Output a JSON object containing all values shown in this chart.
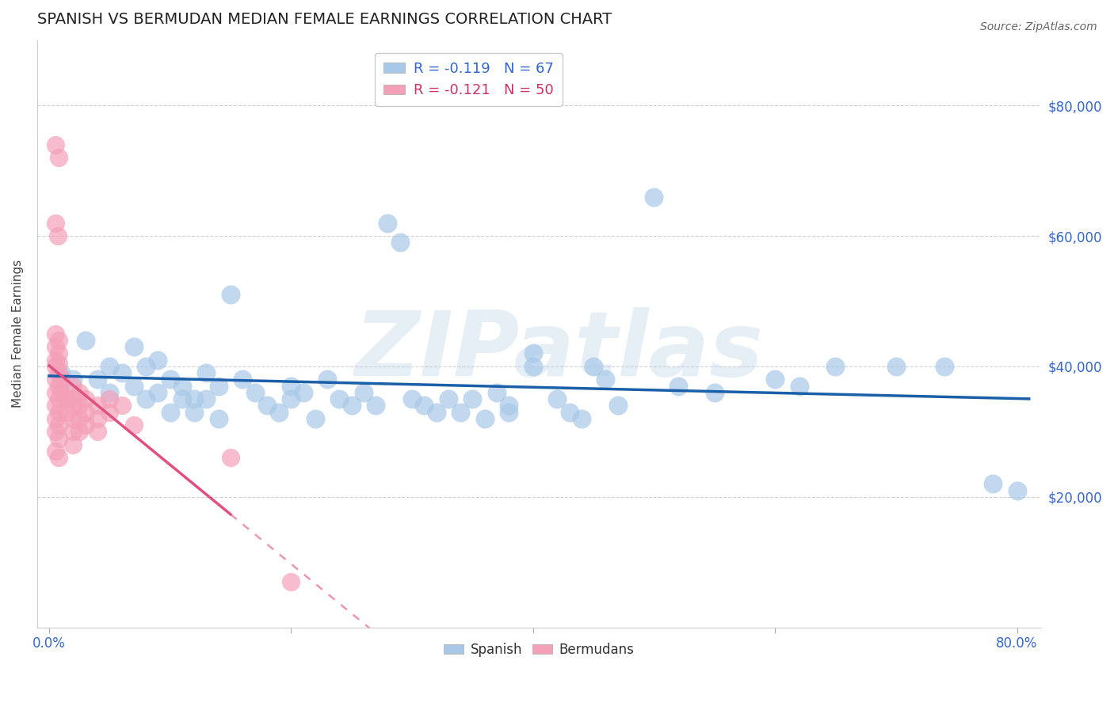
{
  "title": "SPANISH VS BERMUDAN MEDIAN FEMALE EARNINGS CORRELATION CHART",
  "source": "Source: ZipAtlas.com",
  "xlabel": "",
  "ylabel": "Median Female Earnings",
  "xlim": [
    -0.01,
    0.82
  ],
  "ylim": [
    0,
    90000
  ],
  "yticks": [
    20000,
    40000,
    60000,
    80000
  ],
  "ytick_labels": [
    "$20,000",
    "$40,000",
    "$60,000",
    "$80,000"
  ],
  "xticks": [
    0.0,
    0.2,
    0.4,
    0.6,
    0.8
  ],
  "xtick_labels": [
    "0.0%",
    "",
    "",
    "",
    "80.0%"
  ],
  "spanish_color": "#a8c8e8",
  "bermudan_color": "#f4a0b8",
  "trend_spanish_color": "#1a5fa8",
  "trend_bermudan_color": "#e05080",
  "watermark": "ZIPatlas",
  "spanish_points": [
    [
      0.01,
      39000
    ],
    [
      0.02,
      38000
    ],
    [
      0.03,
      44000
    ],
    [
      0.04,
      38000
    ],
    [
      0.05,
      40000
    ],
    [
      0.05,
      36000
    ],
    [
      0.06,
      39000
    ],
    [
      0.07,
      43000
    ],
    [
      0.07,
      37000
    ],
    [
      0.08,
      40000
    ],
    [
      0.08,
      35000
    ],
    [
      0.09,
      41000
    ],
    [
      0.09,
      36000
    ],
    [
      0.1,
      38000
    ],
    [
      0.1,
      33000
    ],
    [
      0.11,
      37000
    ],
    [
      0.11,
      35000
    ],
    [
      0.12,
      35000
    ],
    [
      0.12,
      33000
    ],
    [
      0.13,
      39000
    ],
    [
      0.13,
      35000
    ],
    [
      0.14,
      37000
    ],
    [
      0.14,
      32000
    ],
    [
      0.15,
      51000
    ],
    [
      0.16,
      38000
    ],
    [
      0.17,
      36000
    ],
    [
      0.18,
      34000
    ],
    [
      0.19,
      33000
    ],
    [
      0.2,
      37000
    ],
    [
      0.2,
      35000
    ],
    [
      0.21,
      36000
    ],
    [
      0.22,
      32000
    ],
    [
      0.23,
      38000
    ],
    [
      0.24,
      35000
    ],
    [
      0.25,
      34000
    ],
    [
      0.26,
      36000
    ],
    [
      0.27,
      34000
    ],
    [
      0.28,
      62000
    ],
    [
      0.29,
      59000
    ],
    [
      0.3,
      35000
    ],
    [
      0.31,
      34000
    ],
    [
      0.32,
      33000
    ],
    [
      0.33,
      35000
    ],
    [
      0.34,
      33000
    ],
    [
      0.35,
      35000
    ],
    [
      0.36,
      32000
    ],
    [
      0.37,
      36000
    ],
    [
      0.38,
      34000
    ],
    [
      0.38,
      33000
    ],
    [
      0.4,
      42000
    ],
    [
      0.4,
      40000
    ],
    [
      0.42,
      35000
    ],
    [
      0.43,
      33000
    ],
    [
      0.44,
      32000
    ],
    [
      0.45,
      40000
    ],
    [
      0.46,
      38000
    ],
    [
      0.47,
      34000
    ],
    [
      0.5,
      66000
    ],
    [
      0.52,
      37000
    ],
    [
      0.55,
      36000
    ],
    [
      0.6,
      38000
    ],
    [
      0.62,
      37000
    ],
    [
      0.65,
      40000
    ],
    [
      0.7,
      40000
    ],
    [
      0.74,
      40000
    ],
    [
      0.78,
      22000
    ],
    [
      0.8,
      21000
    ]
  ],
  "bermudan_points": [
    [
      0.005,
      74000
    ],
    [
      0.008,
      72000
    ],
    [
      0.005,
      62000
    ],
    [
      0.007,
      60000
    ],
    [
      0.005,
      45000
    ],
    [
      0.008,
      44000
    ],
    [
      0.005,
      43000
    ],
    [
      0.008,
      42000
    ],
    [
      0.005,
      41000
    ],
    [
      0.008,
      40500
    ],
    [
      0.005,
      40000
    ],
    [
      0.008,
      39000
    ],
    [
      0.005,
      38000
    ],
    [
      0.008,
      37000
    ],
    [
      0.005,
      36000
    ],
    [
      0.008,
      35000
    ],
    [
      0.005,
      34000
    ],
    [
      0.008,
      33000
    ],
    [
      0.005,
      32000
    ],
    [
      0.008,
      31000
    ],
    [
      0.005,
      30000
    ],
    [
      0.008,
      29000
    ],
    [
      0.005,
      27000
    ],
    [
      0.008,
      26000
    ],
    [
      0.01,
      38000
    ],
    [
      0.01,
      36000
    ],
    [
      0.015,
      35000
    ],
    [
      0.015,
      33000
    ],
    [
      0.02,
      37000
    ],
    [
      0.02,
      35000
    ],
    [
      0.02,
      34000
    ],
    [
      0.02,
      32000
    ],
    [
      0.02,
      30000
    ],
    [
      0.02,
      28000
    ],
    [
      0.025,
      36000
    ],
    [
      0.025,
      34000
    ],
    [
      0.025,
      32000
    ],
    [
      0.025,
      30000
    ],
    [
      0.03,
      35000
    ],
    [
      0.03,
      33000
    ],
    [
      0.03,
      31000
    ],
    [
      0.04,
      34000
    ],
    [
      0.04,
      32000
    ],
    [
      0.04,
      30000
    ],
    [
      0.05,
      35000
    ],
    [
      0.05,
      33000
    ],
    [
      0.06,
      34000
    ],
    [
      0.07,
      31000
    ],
    [
      0.15,
      26000
    ],
    [
      0.2,
      7000
    ]
  ]
}
